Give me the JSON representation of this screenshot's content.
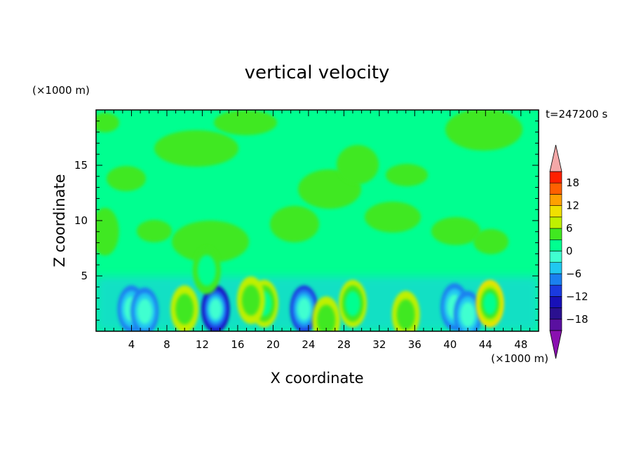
{
  "chart_data": {
    "type": "heatmap",
    "title": "vertical velocity",
    "xlabel": "X coordinate",
    "ylabel": "Z coordinate",
    "x_unit": "(×1000 m)",
    "y_unit": "(×1000 m)",
    "time_label": "t=247200 s",
    "xlim": [
      0,
      50
    ],
    "ylim": [
      0,
      20
    ],
    "x_ticks": [
      4,
      8,
      12,
      16,
      20,
      24,
      28,
      32,
      36,
      40,
      44,
      48
    ],
    "y_ticks": [
      5,
      10,
      15
    ],
    "grid": false,
    "colorbar": {
      "placement": "right",
      "levels": [
        -21,
        -18,
        -15,
        -12,
        -9,
        -6,
        -3,
        0,
        3,
        6,
        9,
        12,
        15,
        18,
        21
      ],
      "tick_labels": [
        -18,
        -12,
        -6,
        0,
        6,
        12,
        18
      ],
      "colors": [
        "#5a10a0",
        "#2a1090",
        "#1810b8",
        "#1a3ae0",
        "#1a80f0",
        "#20c8f0",
        "#40ffd0",
        "#00ff90",
        "#40e820",
        "#c0f000",
        "#f0e000",
        "#ffa000",
        "#ff6000",
        "#ff2000"
      ],
      "under_color": "#8a10b0",
      "over_color": "#f4a8a8"
    },
    "background_value": 1,
    "features": [
      {
        "x": 13.5,
        "z": 2.0,
        "value": -13
      },
      {
        "x": 4.0,
        "z": 2.0,
        "value": -9
      },
      {
        "x": 5.5,
        "z": 1.8,
        "value": -9
      },
      {
        "x": 23.5,
        "z": 2.0,
        "value": -10
      },
      {
        "x": 40.5,
        "z": 2.2,
        "value": -9
      },
      {
        "x": 42.0,
        "z": 1.5,
        "value": -8
      },
      {
        "x": 19.0,
        "z": 2.5,
        "value": 8
      },
      {
        "x": 17.5,
        "z": 2.8,
        "value": 6
      },
      {
        "x": 44.5,
        "z": 2.5,
        "value": 10
      },
      {
        "x": 29.0,
        "z": 2.5,
        "value": 7
      },
      {
        "x": 10.0,
        "z": 2.0,
        "value": 6
      },
      {
        "x": 12.5,
        "z": 5.5,
        "value": 5
      },
      {
        "x": 35.0,
        "z": 1.5,
        "value": 6
      },
      {
        "x": 26.0,
        "z": 1.0,
        "value": 6
      },
      {
        "x": 1.0,
        "z": 9.0,
        "value": 3
      }
    ]
  }
}
